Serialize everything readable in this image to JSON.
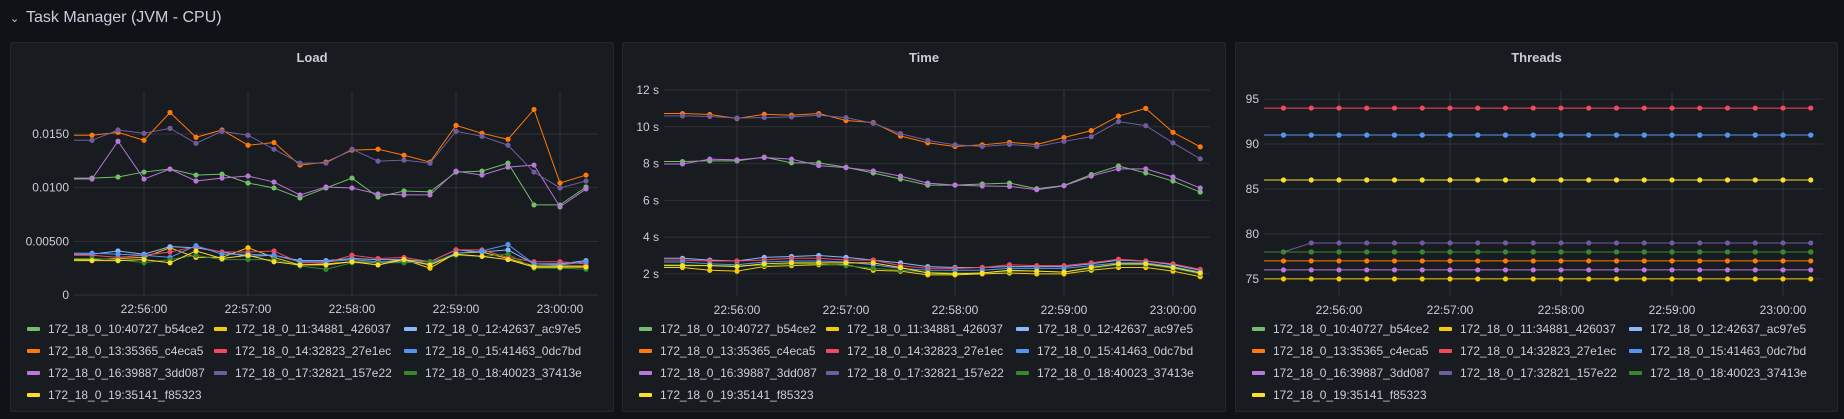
{
  "row": {
    "title": "Task Manager (JVM - CPU)",
    "collapse_icon": "chevron-down-icon"
  },
  "series": [
    {
      "name": "172_18_0_10:40727_b54ce2",
      "color": "#73bf69"
    },
    {
      "name": "172_18_0_11:34881_426037",
      "color": "#f2cc0c"
    },
    {
      "name": "172_18_0_12:42637_ac97e5",
      "color": "#8ab8ff"
    },
    {
      "name": "172_18_0_13:35365_c4eca5",
      "color": "#ff780a"
    },
    {
      "name": "172_18_0_14:32823_27e1ec",
      "color": "#f2495c"
    },
    {
      "name": "172_18_0_15:41463_0dc7bd",
      "color": "#5794f2"
    },
    {
      "name": "172_18_0_16:39887_3dd087",
      "color": "#b877d9"
    },
    {
      "name": "172_18_0_17:32821_157e22",
      "color": "#705da0"
    },
    {
      "name": "172_18_0_18:40023_37413e",
      "color": "#37872d"
    },
    {
      "name": "172_18_0_19:35141_f85323",
      "color": "#fade2a"
    }
  ],
  "chart_data": [
    {
      "type": "line",
      "title": "Load",
      "x": [
        "22:55:30",
        "22:55:45",
        "22:56:00",
        "22:56:15",
        "22:56:30",
        "22:56:45",
        "22:57:00",
        "22:57:15",
        "22:57:30",
        "22:57:45",
        "22:58:00",
        "22:58:15",
        "22:58:30",
        "22:58:45",
        "22:59:00",
        "22:59:15",
        "22:59:30",
        "22:59:45",
        "23:00:00",
        "23:00:15"
      ],
      "xticks": [
        "22:56:00",
        "22:57:00",
        "22:58:00",
        "22:59:00",
        "23:00:00"
      ],
      "yticks": [
        {
          "v": 0,
          "label": "0"
        },
        {
          "v": 0.005,
          "label": "0.00500"
        },
        {
          "v": 0.01,
          "label": "0.0100"
        },
        {
          "v": 0.015,
          "label": "0.0150"
        }
      ],
      "ylim": [
        0,
        0.019
      ],
      "values": [
        [
          0.01089,
          0.01099,
          0.01145,
          0.01173,
          0.01117,
          0.01126,
          0.01043,
          0.00997,
          0.00904,
          0.00997,
          0.01089,
          0.00913,
          0.00969,
          0.0096,
          0.01145,
          0.01154,
          0.01228,
          0.00839,
          0.00839,
          0.01006
        ],
        [
          0.0033,
          0.0034,
          0.0035,
          0.0044,
          0.0035,
          0.0035,
          0.0044,
          0.0035,
          0.0028,
          0.0029,
          0.0031,
          0.003,
          0.0033,
          0.0025,
          0.0039,
          0.004,
          0.0034,
          0.0027,
          0.0027,
          0.0027
        ],
        [
          0.0038,
          0.0041,
          0.0038,
          0.0045,
          0.0044,
          0.004,
          0.0036,
          0.0037,
          0.0032,
          0.0032,
          0.0034,
          0.0033,
          0.0033,
          0.0031,
          0.0042,
          0.004,
          0.0042,
          0.0029,
          0.0029,
          0.0032
        ],
        [
          0.01488,
          0.01515,
          0.01441,
          0.017,
          0.01469,
          0.01537,
          0.01395,
          0.0142,
          0.0121,
          0.01238,
          0.01349,
          0.01358,
          0.01302,
          0.01238,
          0.0158,
          0.01506,
          0.0145,
          0.01728,
          0.01043,
          0.01117
        ],
        [
          0.0037,
          0.0035,
          0.0037,
          0.004,
          0.0045,
          0.004,
          0.004,
          0.0041,
          0.003,
          0.003,
          0.0037,
          0.0034,
          0.0035,
          0.0031,
          0.0042,
          0.0042,
          0.0035,
          0.0031,
          0.0031,
          0.0029
        ],
        [
          0.0039,
          0.0038,
          0.0037,
          0.0035,
          0.0046,
          0.0038,
          0.0038,
          0.0037,
          0.0031,
          0.0031,
          0.0033,
          0.0031,
          0.0031,
          0.0029,
          0.0039,
          0.0041,
          0.0047,
          0.0029,
          0.0028,
          0.0031
        ],
        [
          0.0108,
          0.01432,
          0.0108,
          0.01173,
          0.01062,
          0.01089,
          0.01108,
          0.01052,
          0.00932,
          0.01006,
          0.00997,
          0.00941,
          0.00932,
          0.00932,
          0.01154,
          0.01117,
          0.01191,
          0.0121,
          0.00821,
          0.00988
        ],
        [
          0.01441,
          0.01537,
          0.01506,
          0.01552,
          0.01413,
          0.01525,
          0.01488,
          0.01358,
          0.01228,
          0.01228,
          0.01358,
          0.01247,
          0.01256,
          0.01228,
          0.01525,
          0.01478,
          0.01395,
          0.01145,
          0.00997,
          0.01062
        ],
        [
          0.0034,
          0.0033,
          0.003,
          0.0033,
          0.0037,
          0.0033,
          0.0033,
          0.0033,
          0.0027,
          0.0024,
          0.003,
          0.003,
          0.003,
          0.0031,
          0.0037,
          0.0036,
          0.0038,
          0.0025,
          0.0025,
          0.0024
        ],
        [
          0.0032,
          0.0032,
          0.0033,
          0.003,
          0.0041,
          0.0034,
          0.0037,
          0.0031,
          0.0028,
          0.0028,
          0.0031,
          0.0028,
          0.0033,
          0.0028,
          0.0038,
          0.0036,
          0.0033,
          0.0026,
          0.0026,
          0.0026
        ]
      ]
    },
    {
      "type": "line",
      "title": "Time",
      "x": [
        "22:55:30",
        "22:55:45",
        "22:56:00",
        "22:56:15",
        "22:56:30",
        "22:56:45",
        "22:57:00",
        "22:57:15",
        "22:57:30",
        "22:57:45",
        "22:58:00",
        "22:58:15",
        "22:58:30",
        "22:58:45",
        "22:59:00",
        "22:59:15",
        "22:59:30",
        "22:59:45",
        "23:00:00",
        "23:00:15"
      ],
      "xticks": [
        "22:56:00",
        "22:57:00",
        "22:58:00",
        "22:59:00",
        "23:00:00"
      ],
      "yticks": [
        {
          "v": 2,
          "label": "2 s"
        },
        {
          "v": 4,
          "label": "4 s"
        },
        {
          "v": 6,
          "label": "6 s"
        },
        {
          "v": 8,
          "label": "8 s"
        },
        {
          "v": 10,
          "label": "10 s"
        },
        {
          "v": 12,
          "label": "12 s"
        }
      ],
      "ylim": [
        0.8,
        12
      ],
      "values": [
        [
          8.11,
          8.15,
          8.15,
          8.35,
          8.04,
          8.04,
          7.8,
          7.49,
          7.16,
          6.83,
          6.83,
          6.89,
          6.94,
          6.63,
          6.81,
          7.4,
          7.87,
          7.49,
          7.05,
          6.45
        ],
        [
          2.35,
          2.2,
          2.15,
          2.4,
          2.45,
          2.5,
          2.5,
          2.2,
          2.15,
          1.95,
          1.95,
          2.0,
          2.05,
          2.0,
          2.0,
          2.2,
          2.35,
          2.35,
          2.15,
          1.85
        ],
        [
          2.85,
          2.75,
          2.7,
          2.9,
          2.95,
          3.0,
          2.9,
          2.75,
          2.6,
          2.4,
          2.35,
          2.35,
          2.4,
          2.4,
          2.4,
          2.55,
          2.75,
          2.7,
          2.5,
          2.2
        ],
        [
          10.72,
          10.67,
          10.45,
          10.68,
          10.63,
          10.72,
          10.34,
          10.23,
          9.5,
          9.13,
          8.93,
          9.02,
          9.15,
          9.04,
          9.42,
          9.79,
          10.58,
          11.0,
          9.7,
          8.91
        ],
        [
          2.75,
          2.7,
          2.7,
          2.75,
          2.85,
          2.85,
          2.75,
          2.75,
          2.45,
          2.3,
          2.3,
          2.35,
          2.5,
          2.45,
          2.45,
          2.6,
          2.8,
          2.7,
          2.55,
          2.25
        ],
        [
          2.65,
          2.55,
          2.5,
          2.65,
          2.7,
          2.7,
          2.65,
          2.5,
          2.3,
          2.2,
          2.2,
          2.2,
          2.3,
          2.3,
          2.3,
          2.45,
          2.6,
          2.6,
          2.4,
          2.1
        ],
        [
          7.98,
          8.24,
          8.2,
          8.33,
          8.24,
          7.89,
          7.78,
          7.6,
          7.32,
          6.94,
          6.83,
          6.78,
          6.76,
          6.58,
          6.79,
          7.32,
          7.71,
          7.71,
          7.27,
          6.67
        ],
        [
          10.59,
          10.56,
          10.48,
          10.5,
          10.54,
          10.63,
          10.5,
          10.19,
          9.63,
          9.26,
          9.02,
          8.93,
          9.04,
          8.93,
          9.21,
          9.46,
          10.28,
          10.06,
          9.13,
          8.26
        ],
        [
          2.5,
          2.45,
          2.45,
          2.45,
          2.55,
          2.55,
          2.45,
          2.3,
          2.2,
          2.1,
          2.05,
          2.05,
          2.15,
          2.15,
          2.1,
          2.3,
          2.5,
          2.5,
          2.3,
          2.0
        ],
        [
          2.45,
          2.45,
          2.4,
          2.55,
          2.6,
          2.6,
          2.6,
          2.6,
          2.35,
          2.05,
          2.0,
          2.05,
          2.2,
          2.15,
          2.1,
          2.35,
          2.55,
          2.55,
          2.35,
          2.05
        ]
      ]
    },
    {
      "type": "line",
      "title": "Threads",
      "x": [
        "22:55:30",
        "22:55:45",
        "22:56:00",
        "22:56:15",
        "22:56:30",
        "22:56:45",
        "22:57:00",
        "22:57:15",
        "22:57:30",
        "22:57:45",
        "22:58:00",
        "22:58:15",
        "22:58:30",
        "22:58:45",
        "22:59:00",
        "22:59:15",
        "22:59:30",
        "22:59:45",
        "23:00:00",
        "23:00:15"
      ],
      "xticks": [
        "22:56:00",
        "22:57:00",
        "22:58:00",
        "22:59:00",
        "23:00:00"
      ],
      "yticks": [
        {
          "v": 75,
          "label": "75"
        },
        {
          "v": 80,
          "label": "80"
        },
        {
          "v": 85,
          "label": "85"
        },
        {
          "v": 90,
          "label": "90"
        },
        {
          "v": 95,
          "label": "95"
        }
      ],
      "ylim": [
        73.1,
        95.9
      ],
      "values": [
        [
          78,
          78,
          78,
          78,
          78,
          78,
          78,
          78,
          78,
          78,
          78,
          78,
          78,
          78,
          78,
          78,
          78,
          78,
          78,
          78
        ],
        [
          75,
          75,
          75,
          75,
          75,
          75,
          75,
          75,
          75,
          75,
          75,
          75,
          75,
          75,
          75,
          75,
          75,
          75,
          75,
          75
        ],
        [
          91,
          91,
          91,
          91,
          91,
          91,
          91,
          91,
          91,
          91,
          91,
          91,
          91,
          91,
          91,
          91,
          91,
          91,
          91,
          91
        ],
        [
          77,
          77,
          77,
          77,
          77,
          77,
          77,
          77,
          77,
          77,
          77,
          77,
          77,
          77,
          77,
          77,
          77,
          77,
          77,
          77
        ],
        [
          94,
          94,
          94,
          94,
          94,
          94,
          94,
          94,
          94,
          94,
          94,
          94,
          94,
          94,
          94,
          94,
          94,
          94,
          94,
          94
        ],
        [
          91,
          91,
          91,
          91,
          91,
          91,
          91,
          91,
          91,
          91,
          91,
          91,
          91,
          91,
          91,
          91,
          91,
          91,
          91,
          91
        ],
        [
          76,
          76,
          76,
          76,
          76,
          76,
          76,
          76,
          76,
          76,
          76,
          76,
          76,
          76,
          76,
          76,
          76,
          76,
          76,
          76
        ],
        [
          78,
          79,
          79,
          79,
          79,
          79,
          79,
          79,
          79,
          79,
          79,
          79,
          79,
          79,
          79,
          79,
          79,
          79,
          79,
          79
        ],
        [
          78,
          78,
          78,
          78,
          78,
          78,
          78,
          78,
          78,
          78,
          78,
          78,
          78,
          78,
          78,
          78,
          78,
          78,
          78,
          78
        ],
        [
          86,
          86,
          86,
          86,
          86,
          86,
          86,
          86,
          86,
          86,
          86,
          86,
          86,
          86,
          86,
          86,
          86,
          86,
          86,
          86
        ]
      ]
    }
  ]
}
